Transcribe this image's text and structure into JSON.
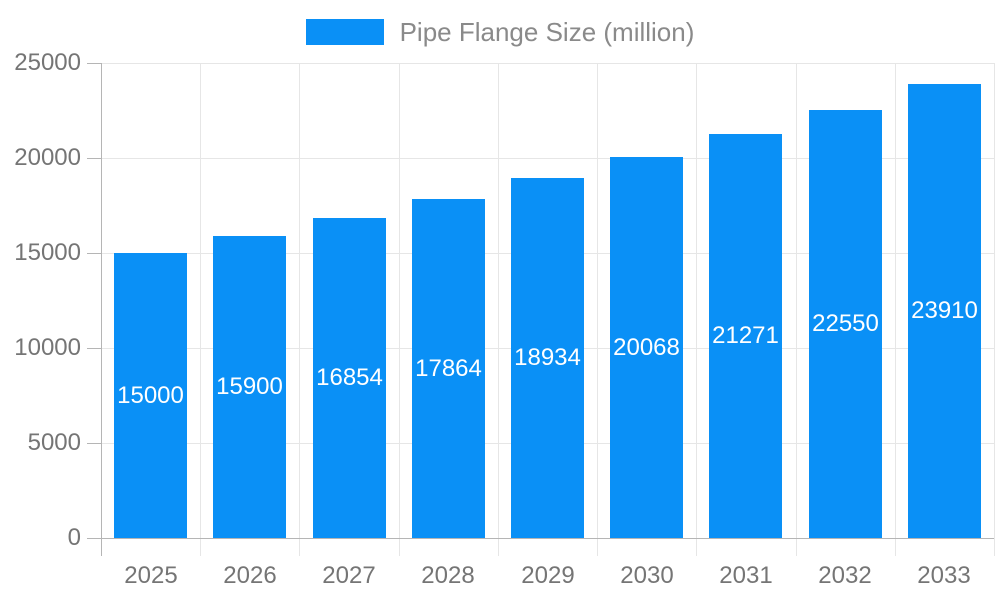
{
  "chart_data": {
    "type": "bar",
    "title": "Pipe Flange Size (million)",
    "legend": {
      "label": "Pipe Flange Size (million)",
      "position": "top"
    },
    "categories": [
      "2025",
      "2026",
      "2027",
      "2028",
      "2029",
      "2030",
      "2031",
      "2032",
      "2033"
    ],
    "series": [
      {
        "name": "Pipe Flange Size (million)",
        "values": [
          15000,
          15900,
          16854,
          17864,
          18934,
          20068,
          21271,
          22550,
          23910
        ]
      }
    ],
    "value_labels": [
      "15000",
      "15900",
      "16854",
      "17864",
      "18934",
      "20068",
      "21271",
      "22550",
      "23910"
    ],
    "xlabel": "",
    "ylabel": "",
    "ylim": [
      0,
      25000
    ],
    "yticks": [
      0,
      5000,
      10000,
      15000,
      20000,
      25000
    ],
    "ytick_labels": [
      "0",
      "5000",
      "10000",
      "15000",
      "20000",
      "25000"
    ],
    "grid": true,
    "colors": {
      "bar": "#0a90f6",
      "value_label": "#ffffff",
      "axis": "#b5b5b5",
      "grid": "#e6e6e6",
      "tick_text": "#757575",
      "legend_text": "#8a8a8a",
      "background": "#ffffff"
    }
  }
}
